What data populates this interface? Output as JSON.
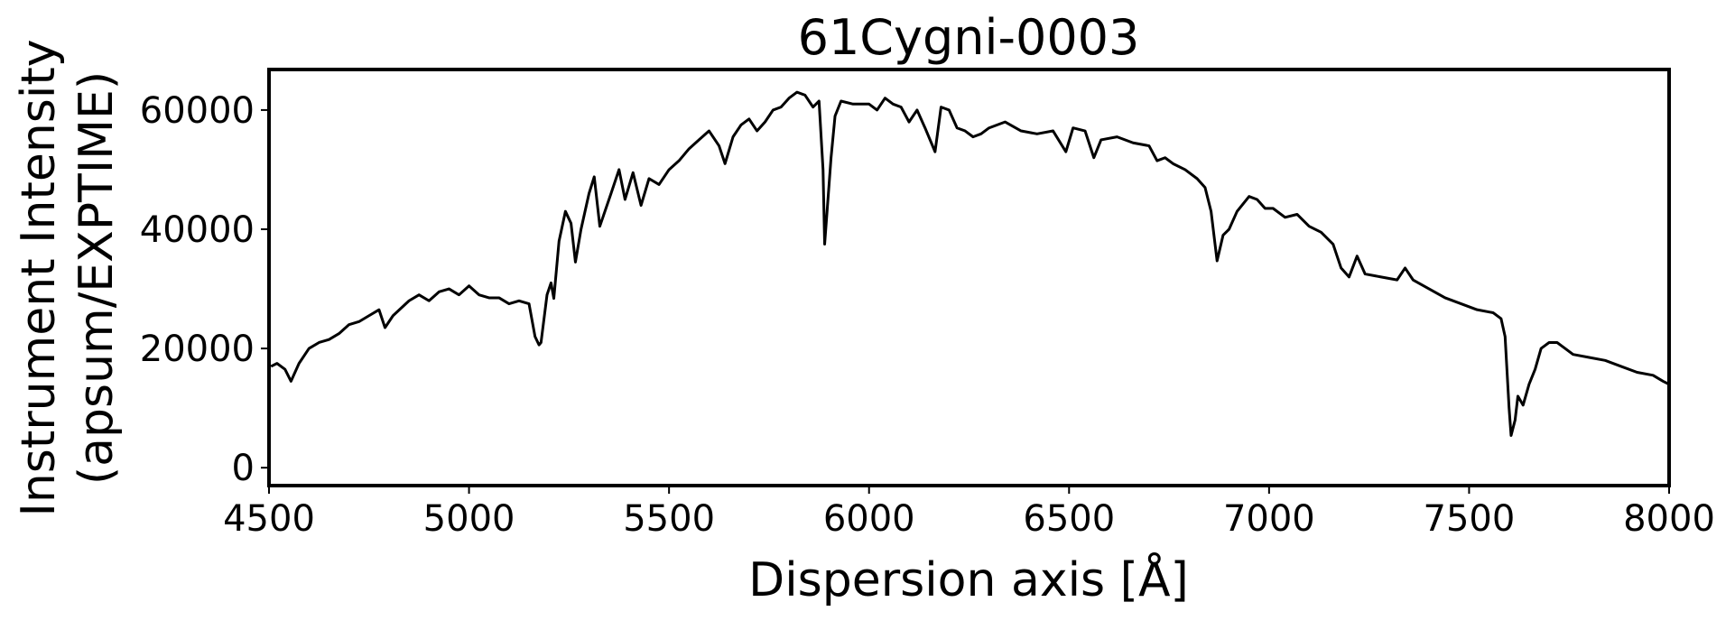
{
  "chart_data": {
    "type": "line",
    "title": "61Cygni-0003",
    "xlabel": "Dispersion axis [Å]",
    "ylabel": [
      "Instrument Intensity",
      "(apsum/EXPTIME)"
    ],
    "color": "#000000",
    "xlim": [
      4500,
      8000
    ],
    "xticks": [
      4500,
      5000,
      5500,
      6000,
      6500,
      7000,
      7500,
      8000
    ],
    "ylim": [
      -3000,
      66800
    ],
    "yticks": [
      0,
      20000,
      40000,
      60000
    ],
    "x": [
      4505,
      4520,
      4540,
      4555,
      4575,
      4600,
      4625,
      4650,
      4675,
      4700,
      4725,
      4750,
      4775,
      4790,
      4810,
      4850,
      4875,
      4900,
      4925,
      4950,
      4975,
      5000,
      5025,
      5050,
      5075,
      5100,
      5125,
      5150,
      5165,
      5175,
      5180,
      5195,
      5205,
      5212,
      5225,
      5241,
      5255,
      5266,
      5280,
      5300,
      5313,
      5327,
      5355,
      5375,
      5390,
      5410,
      5430,
      5450,
      5475,
      5500,
      5525,
      5550,
      5575,
      5600,
      5625,
      5640,
      5660,
      5680,
      5700,
      5720,
      5740,
      5760,
      5780,
      5800,
      5820,
      5840,
      5860,
      5875,
      5885,
      5889,
      5905,
      5915,
      5930,
      5960,
      6000,
      6020,
      6040,
      6060,
      6080,
      6100,
      6120,
      6140,
      6165,
      6180,
      6200,
      6220,
      6240,
      6260,
      6280,
      6300,
      6340,
      6380,
      6420,
      6460,
      6492,
      6510,
      6540,
      6562,
      6580,
      6620,
      6660,
      6700,
      6720,
      6740,
      6760,
      6790,
      6820,
      6840,
      6855,
      6870,
      6885,
      6900,
      6920,
      6950,
      6970,
      6990,
      7010,
      7040,
      7070,
      7100,
      7130,
      7160,
      7180,
      7200,
      7220,
      7240,
      7280,
      7320,
      7340,
      7360,
      7400,
      7440,
      7480,
      7520,
      7560,
      7580,
      7590,
      7600,
      7605,
      7615,
      7622,
      7635,
      7650,
      7665,
      7680,
      7700,
      7720,
      7740,
      7760,
      7800,
      7840,
      7880,
      7920,
      7960,
      7985,
      8000
    ],
    "values": [
      17000,
      17500,
      16500,
      14500,
      17500,
      20000,
      21000,
      21500,
      22500,
      24000,
      24500,
      25500,
      26500,
      23500,
      25500,
      28000,
      29000,
      28000,
      29500,
      30000,
      29000,
      30500,
      29000,
      28500,
      28500,
      27500,
      28000,
      27500,
      22000,
      20600,
      21000,
      29000,
      31000,
      28400,
      38000,
      43000,
      41000,
      34500,
      40000,
      46000,
      48800,
      40500,
      46000,
      50000,
      45000,
      49500,
      44000,
      48500,
      47500,
      50000,
      51500,
      53500,
      55000,
      56500,
      54000,
      51000,
      55500,
      57500,
      58500,
      56500,
      58000,
      60000,
      60500,
      62000,
      63000,
      62500,
      60500,
      61500,
      50000,
      37500,
      52000,
      59000,
      61500,
      61000,
      61000,
      60000,
      62000,
      61000,
      60500,
      58000,
      60000,
      57000,
      53000,
      60500,
      60000,
      57000,
      56500,
      55500,
      56000,
      57000,
      58000,
      56500,
      56000,
      56500,
      53000,
      57000,
      56500,
      52000,
      55000,
      55500,
      54500,
      54000,
      51500,
      52000,
      51000,
      50000,
      48500,
      47000,
      43000,
      34700,
      39000,
      40000,
      43000,
      45500,
      45000,
      43500,
      43500,
      42000,
      42500,
      40500,
      39500,
      37500,
      33500,
      32000,
      35500,
      32500,
      32000,
      31500,
      33500,
      31500,
      30000,
      28500,
      27500,
      26500,
      26000,
      25000,
      22000,
      10000,
      5400,
      8000,
      12000,
      10500,
      14000,
      16500,
      20000,
      21000,
      21000,
      20000,
      19000,
      18500,
      18000,
      17000,
      16000,
      15500,
      14500,
      14000
    ]
  }
}
